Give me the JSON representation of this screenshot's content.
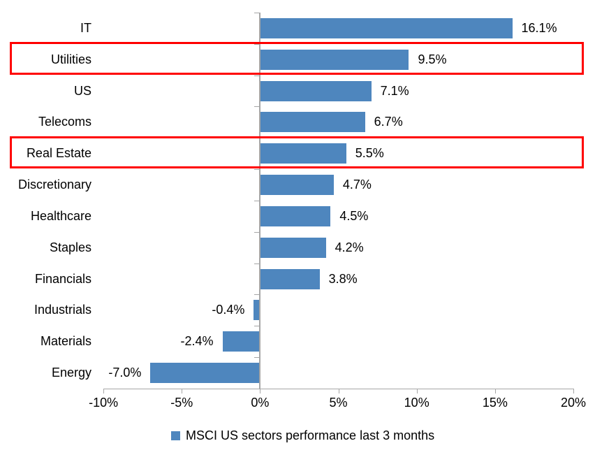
{
  "chart_data": {
    "type": "bar",
    "orientation": "horizontal",
    "title": "",
    "categories": [
      "IT",
      "Utilities",
      "US",
      "Telecoms",
      "Real Estate",
      "Discretionary",
      "Healthcare",
      "Staples",
      "Financials",
      "Industrials",
      "Materials",
      "Energy"
    ],
    "values": [
      16.1,
      9.5,
      7.1,
      6.7,
      5.5,
      4.7,
      4.5,
      4.2,
      3.8,
      -0.4,
      -2.4,
      -7.0
    ],
    "value_labels": [
      "16.1%",
      "9.5%",
      "7.1%",
      "6.7%",
      "5.5%",
      "4.7%",
      "4.5%",
      "4.2%",
      "3.8%",
      "-0.4%",
      "-2.4%",
      "-7.0%"
    ],
    "xlim": [
      -10,
      20
    ],
    "x_ticks": [
      -10,
      -5,
      0,
      5,
      10,
      15,
      20
    ],
    "x_tick_labels": [
      "-10%",
      "-5%",
      "0%",
      "5%",
      "10%",
      "15%",
      "20%"
    ],
    "grid": false,
    "legend_position": "bottom-center",
    "legend": [
      {
        "label": "MSCI US sectors performance last 3 months",
        "color": "#4E86BE"
      }
    ],
    "highlighted_categories": [
      "Utilities",
      "Real Estate"
    ],
    "colors": {
      "bar": "#4E86BE",
      "axis": "#A6A6A6",
      "highlight_box": "#FF0000",
      "text": "#000000"
    }
  }
}
